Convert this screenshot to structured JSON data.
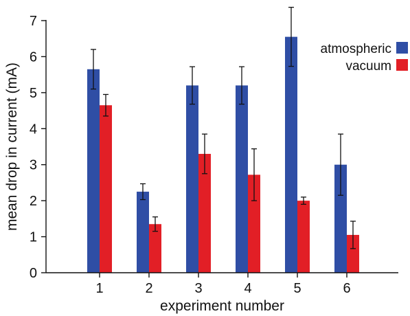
{
  "chart_data": {
    "type": "bar",
    "xlabel": "experiment number",
    "ylabel": "mean drop in current (mA)",
    "ylim": [
      0,
      7
    ],
    "yticks": [
      0,
      1,
      2,
      3,
      4,
      5,
      6,
      7
    ],
    "categories": [
      "1",
      "2",
      "3",
      "4",
      "5",
      "6"
    ],
    "grid": false,
    "legend_position": "top-right",
    "series": [
      {
        "name": "atmospheric",
        "color": "#2f4ea5",
        "values": [
          5.65,
          2.25,
          5.2,
          5.2,
          6.55,
          3.0
        ],
        "errors": [
          0.55,
          0.22,
          0.52,
          0.52,
          0.82,
          0.85
        ]
      },
      {
        "name": "vacuum",
        "color": "#e21f26",
        "values": [
          4.65,
          1.35,
          3.3,
          2.72,
          2.0,
          1.05
        ],
        "errors": [
          0.3,
          0.2,
          0.55,
          0.72,
          0.1,
          0.38
        ]
      }
    ]
  }
}
